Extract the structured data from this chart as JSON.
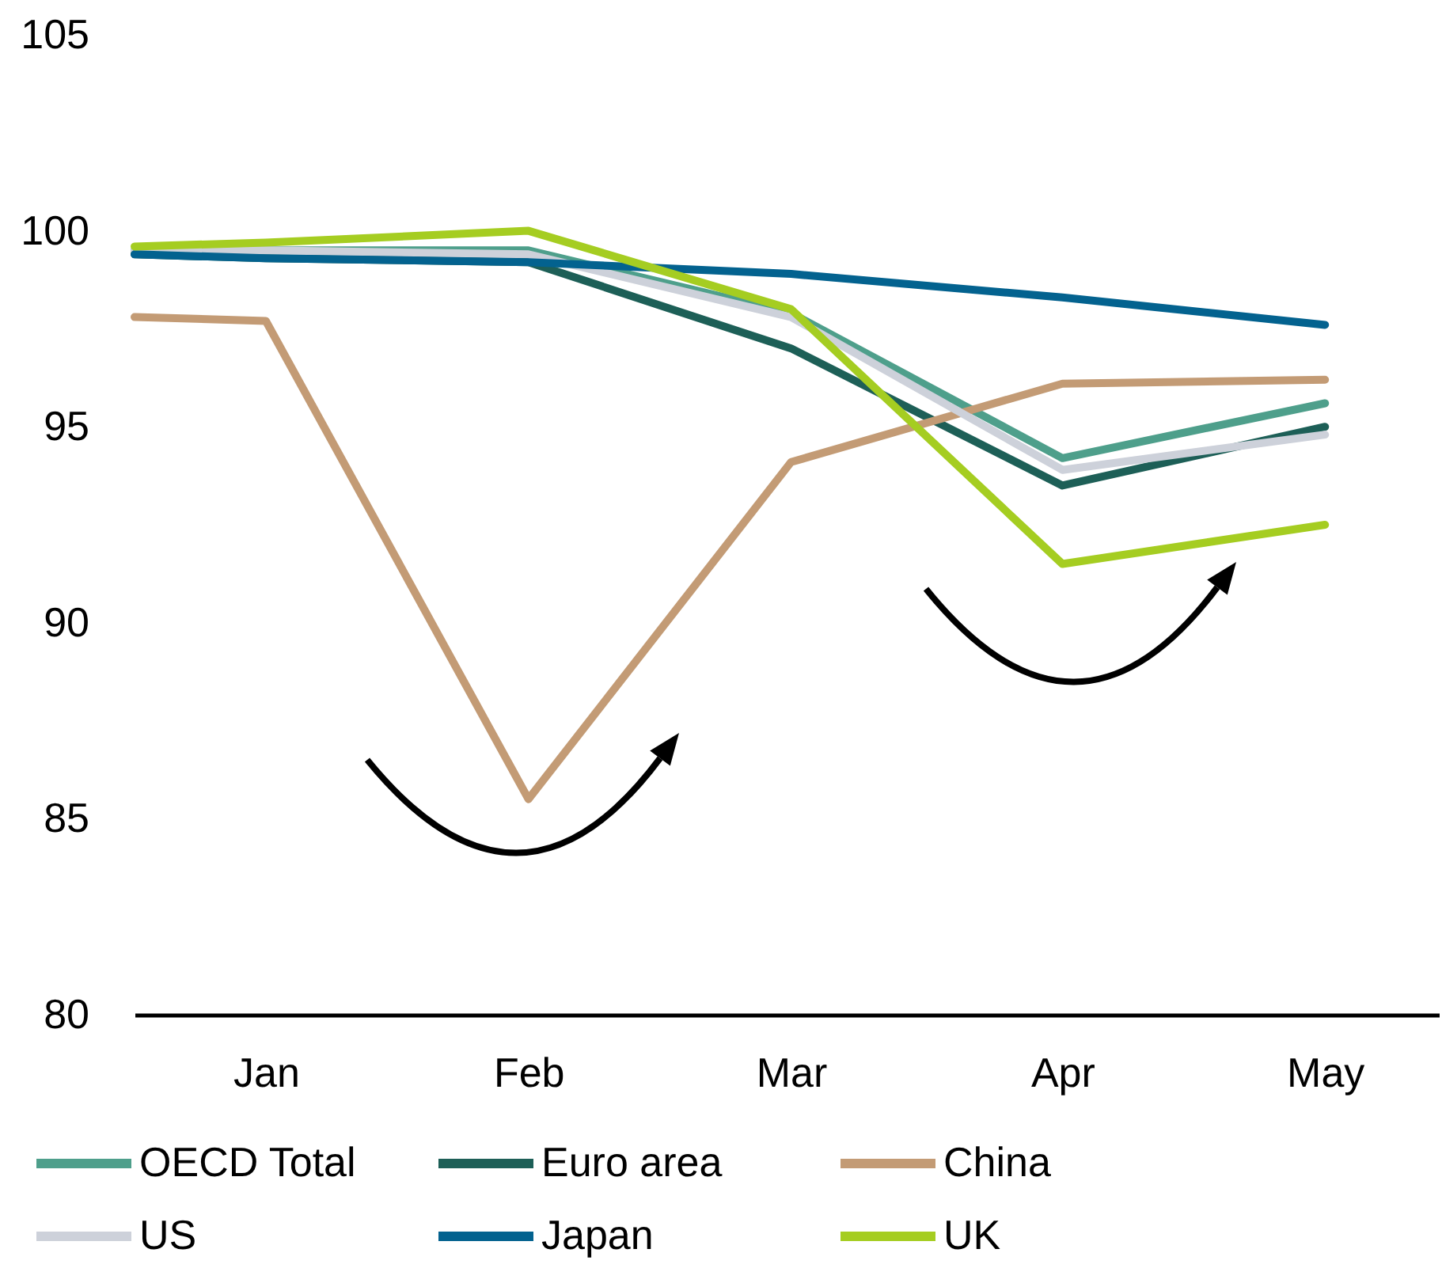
{
  "chart_data": {
    "type": "line",
    "x": [
      "--01-01",
      "--01-16",
      "--02-15",
      "--03-16",
      "--04-16",
      "--05-16"
    ],
    "xlim": [
      "--01-01",
      "--05-29"
    ],
    "xticks": [
      {
        "value": "--01-16",
        "label": "Jan"
      },
      {
        "value": "--02-15",
        "label": "Feb"
      },
      {
        "value": "--03-16",
        "label": "Mar"
      },
      {
        "value": "--04-16",
        "label": "Apr"
      },
      {
        "value": "--05-16",
        "label": "May"
      }
    ],
    "ylim": [
      80,
      105
    ],
    "yticks": [
      80,
      85,
      90,
      95,
      100,
      105
    ],
    "grid": false,
    "legend": "bottom",
    "series": [
      {
        "name": "OECD Total",
        "color": "#4e9f8b",
        "values": [
          99.5,
          99.5,
          99.5,
          97.9,
          94.2,
          95.6
        ]
      },
      {
        "name": "Euro area",
        "color": "#1d5f57",
        "values": [
          99.4,
          99.3,
          99.2,
          97.0,
          93.5,
          95.0
        ]
      },
      {
        "name": "China",
        "color": "#c39b75",
        "values": [
          97.8,
          97.7,
          85.5,
          94.1,
          96.1,
          96.2
        ]
      },
      {
        "name": "US",
        "color": "#cdd1da",
        "values": [
          99.5,
          99.5,
          99.4,
          97.8,
          93.9,
          94.8
        ]
      },
      {
        "name": "Japan",
        "color": "#03628f",
        "values": [
          99.4,
          99.3,
          99.2,
          98.9,
          98.3,
          97.6
        ]
      },
      {
        "name": "UK",
        "color": "#a5cd21",
        "values": [
          99.6,
          99.7,
          100.0,
          98.0,
          91.5,
          92.5
        ]
      }
    ]
  }
}
